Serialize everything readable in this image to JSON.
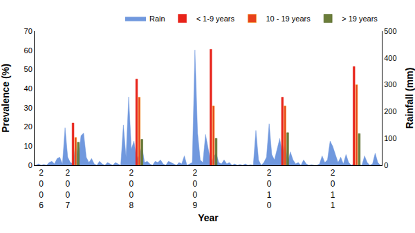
{
  "chart_data": {
    "type": "bar",
    "x_label": "Year",
    "y_label": "Prevalence (%)",
    "y2_label": "Rainfall (mm)",
    "categories": [
      null,
      null,
      "2006",
      null,
      null,
      null,
      null,
      null,
      null,
      null,
      null,
      null,
      "2007",
      null,
      null,
      null,
      null,
      null,
      null,
      null,
      null,
      null,
      null,
      null,
      null,
      null,
      null,
      null,
      null,
      null,
      null,
      null,
      null,
      null,
      null,
      null,
      "2008",
      null,
      null,
      null,
      null,
      null,
      null,
      null,
      null,
      null,
      null,
      null,
      null,
      null,
      null,
      null,
      null,
      null,
      null,
      null,
      null,
      null,
      null,
      null,
      "2009",
      null,
      null,
      null,
      null,
      null,
      null,
      null,
      null,
      null,
      null,
      null,
      null,
      null,
      null,
      null,
      null,
      null,
      null,
      null,
      null,
      null,
      null,
      null,
      null,
      null,
      null,
      null,
      "2010",
      null,
      null,
      null,
      null,
      null,
      null,
      null,
      null,
      null,
      null,
      null,
      null,
      null,
      null,
      null,
      null,
      null,
      null,
      null,
      null,
      null,
      null,
      null,
      "2011",
      null,
      null,
      null,
      null,
      null,
      null,
      null,
      null,
      null,
      null,
      null,
      null,
      null,
      null,
      null,
      null,
      null,
      null
    ],
    "series": [
      {
        "name": "Rain",
        "type": "area",
        "axis": "y2",
        "color": "#7098de",
        "values": [
          0,
          5,
          0,
          3,
          0,
          10,
          15,
          5,
          25,
          30,
          5,
          140,
          30,
          10,
          5,
          85,
          20,
          110,
          120,
          30,
          10,
          25,
          5,
          0,
          15,
          5,
          0,
          10,
          5,
          0,
          10,
          5,
          0,
          150,
          30,
          255,
          60,
          90,
          20,
          40,
          70,
          10,
          15,
          5,
          0,
          15,
          10,
          20,
          5,
          0,
          15,
          10,
          5,
          0,
          10,
          5,
          35,
          0,
          5,
          10,
          430,
          120,
          20,
          10,
          115,
          60,
          10,
          30,
          45,
          10,
          5,
          20,
          5,
          10,
          0,
          5,
          0,
          3,
          0,
          5,
          0,
          2,
          0,
          130,
          20,
          0,
          10,
          30,
          155,
          40,
          20,
          60,
          100,
          40,
          85,
          10,
          50,
          20,
          5,
          10,
          0,
          20,
          5,
          0,
          2,
          0,
          0,
          5,
          35,
          10,
          20,
          90,
          70,
          40,
          10,
          30,
          5,
          40,
          10,
          0,
          5,
          0,
          2,
          0,
          35,
          10,
          0,
          5,
          45,
          10,
          0
        ]
      },
      {
        "name": "< 1-9 years",
        "type": "bar",
        "color": "#e8231a",
        "values": [
          null,
          null,
          null,
          null,
          null,
          null,
          null,
          null,
          null,
          null,
          null,
          null,
          null,
          null,
          22,
          null,
          null,
          null,
          null,
          null,
          null,
          null,
          null,
          null,
          null,
          null,
          null,
          null,
          null,
          null,
          null,
          null,
          null,
          null,
          null,
          null,
          null,
          null,
          45,
          null,
          null,
          null,
          null,
          null,
          null,
          null,
          null,
          null,
          null,
          null,
          null,
          null,
          null,
          null,
          null,
          null,
          null,
          null,
          null,
          null,
          null,
          null,
          null,
          null,
          null,
          null,
          60.5,
          null,
          null,
          null,
          null,
          null,
          null,
          null,
          null,
          null,
          null,
          null,
          null,
          null,
          null,
          null,
          null,
          null,
          null,
          null,
          null,
          null,
          null,
          null,
          null,
          null,
          null,
          35.5,
          null,
          null,
          null,
          null,
          null,
          null,
          null,
          null,
          null,
          null,
          null,
          null,
          null,
          null,
          null,
          null,
          null,
          null,
          null,
          null,
          null,
          null,
          null,
          null,
          null,
          null,
          51.5,
          null,
          null,
          null,
          null,
          null,
          null,
          null,
          null,
          null,
          null
        ]
      },
      {
        "name": "10 - 19 years",
        "type": "bar",
        "color": "#e8401c",
        "values": [
          null,
          null,
          null,
          null,
          null,
          null,
          null,
          null,
          null,
          null,
          null,
          null,
          null,
          null,
          null,
          14.5,
          null,
          null,
          null,
          null,
          null,
          null,
          null,
          null,
          null,
          null,
          null,
          null,
          null,
          null,
          null,
          null,
          null,
          null,
          null,
          null,
          null,
          null,
          null,
          35.5,
          null,
          null,
          null,
          null,
          null,
          null,
          null,
          null,
          null,
          null,
          null,
          null,
          null,
          null,
          null,
          null,
          null,
          null,
          null,
          null,
          null,
          null,
          null,
          null,
          null,
          null,
          null,
          31,
          null,
          null,
          null,
          null,
          null,
          null,
          null,
          null,
          null,
          null,
          null,
          null,
          null,
          null,
          null,
          null,
          null,
          null,
          null,
          null,
          null,
          null,
          null,
          null,
          null,
          null,
          31,
          null,
          null,
          null,
          null,
          null,
          null,
          null,
          null,
          null,
          null,
          null,
          null,
          null,
          null,
          null,
          null,
          null,
          null,
          null,
          null,
          null,
          null,
          null,
          null,
          null,
          null,
          42,
          null,
          null,
          null,
          null,
          null,
          null,
          null,
          null,
          null
        ]
      },
      {
        "name": "> 19 years",
        "type": "bar",
        "color": "#6b7d3a",
        "values": [
          null,
          null,
          null,
          null,
          null,
          null,
          null,
          null,
          null,
          null,
          null,
          null,
          null,
          null,
          null,
          null,
          12,
          null,
          null,
          null,
          null,
          null,
          null,
          null,
          null,
          null,
          null,
          null,
          null,
          null,
          null,
          null,
          null,
          null,
          null,
          null,
          null,
          null,
          null,
          null,
          13.5,
          null,
          null,
          null,
          null,
          null,
          null,
          null,
          null,
          null,
          null,
          null,
          null,
          null,
          null,
          null,
          null,
          null,
          null,
          null,
          null,
          null,
          null,
          null,
          null,
          null,
          null,
          null,
          14,
          null,
          null,
          null,
          null,
          null,
          null,
          null,
          null,
          null,
          null,
          null,
          null,
          null,
          null,
          null,
          null,
          null,
          null,
          null,
          null,
          null,
          null,
          null,
          null,
          null,
          null,
          17,
          null,
          null,
          null,
          null,
          null,
          null,
          null,
          null,
          null,
          null,
          null,
          null,
          null,
          null,
          null,
          null,
          null,
          null,
          null,
          null,
          null,
          null,
          null,
          null,
          null,
          null,
          16.5,
          null,
          null,
          null,
          null,
          null,
          null,
          null,
          null
        ]
      }
    ],
    "ylim": [
      0,
      70
    ],
    "yticks": [
      0,
      10,
      20,
      30,
      40,
      50,
      60,
      70
    ],
    "y2lim": [
      0,
      500
    ],
    "y2ticks": [
      0,
      100,
      200,
      300,
      400,
      500
    ],
    "grid": false,
    "legend": "top right"
  }
}
